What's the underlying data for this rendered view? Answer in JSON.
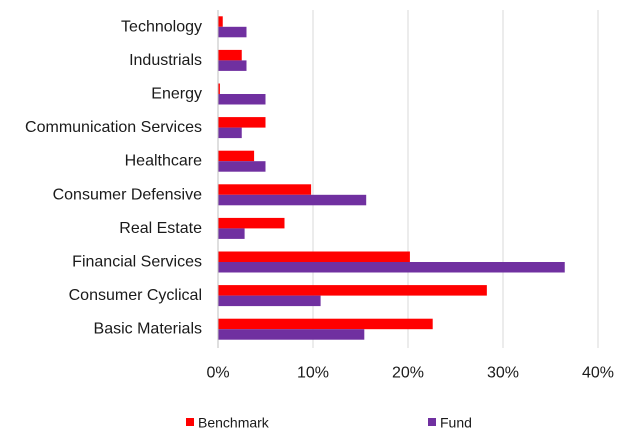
{
  "chart_data": {
    "type": "bar",
    "orientation": "horizontal",
    "categories": [
      "Technology",
      "Industrials",
      "Energy",
      "Communication Services",
      "Healthcare",
      "Consumer Defensive",
      "Real Estate",
      "Financial Services",
      "Consumer Cyclical",
      "Basic Materials"
    ],
    "series": [
      {
        "name": "Benchmark",
        "color": "#ff0000",
        "values": [
          0.5,
          2.5,
          0.2,
          5.0,
          3.8,
          9.8,
          7.0,
          20.2,
          28.3,
          22.6
        ]
      },
      {
        "name": "Fund",
        "color": "#7030a0",
        "values": [
          3.0,
          3.0,
          5.0,
          2.5,
          5.0,
          15.6,
          2.8,
          36.5,
          10.8,
          15.4
        ]
      }
    ],
    "xlim": [
      0,
      40
    ],
    "xticks": [
      "0%",
      "10%",
      "20%",
      "30%",
      "40%"
    ],
    "xtick_values": [
      0,
      10,
      20,
      30,
      40
    ],
    "title": "",
    "xlabel": "",
    "ylabel": "",
    "grid": "vertical",
    "legend_position": "bottom"
  }
}
